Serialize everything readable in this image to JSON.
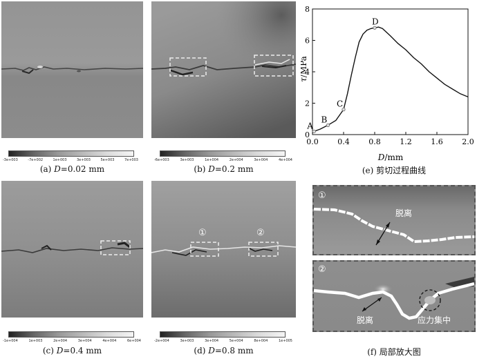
{
  "panels": {
    "a": {
      "caption_prefix": "(a) ",
      "caption_var": "D",
      "caption_rest": "=0.02 mm",
      "colorbar_ticks": [
        "-3e+003",
        "-7e+002",
        "1e+003",
        "3e+003",
        "5e+003",
        "7e+003"
      ]
    },
    "b": {
      "caption_prefix": "(b) ",
      "caption_var": "D",
      "caption_rest": "=0.2 mm",
      "colorbar_ticks": [
        "-6e+003",
        "3e+003",
        "1e+004",
        "2e+004",
        "3e+004",
        "4e+004"
      ]
    },
    "c": {
      "caption_prefix": "(c) ",
      "caption_var": "D",
      "caption_rest": "=0.4 mm",
      "colorbar_ticks": [
        "-1e+004",
        "1e+003",
        "2e+004",
        "3e+004",
        "4e+004",
        "6e+004"
      ]
    },
    "d": {
      "caption_prefix": "(d) ",
      "caption_var": "D",
      "caption_rest": "=0.8 mm",
      "colorbar_ticks": [
        "-2e+004",
        "3e+003",
        "3e+004",
        "5e+004",
        "8e+004",
        "1e+005"
      ],
      "markers": [
        "①",
        "②"
      ]
    },
    "e": {
      "caption": "(e)  剪切过程曲线"
    },
    "f": {
      "caption": "(f)  局部放大图",
      "zoom1": {
        "marker": "①",
        "label": "脱离"
      },
      "zoom2": {
        "marker": "②",
        "label_left": "脱离",
        "label_right": "应力集中"
      }
    }
  },
  "chart_data": {
    "type": "line",
    "title": "",
    "xlabel_var": "D",
    "xlabel_unit": "/mm",
    "ylabel_var": "τ",
    "ylabel_unit": "/MPa",
    "xlim": [
      0,
      2.0
    ],
    "ylim": [
      0,
      8
    ],
    "xticks": [
      "0.0",
      "0.4",
      "0.8",
      "1.2",
      "1.6",
      "2.0"
    ],
    "yticks": [
      "0",
      "2",
      "4",
      "6",
      "8"
    ],
    "xtick_values": [
      0,
      0.4,
      0.8,
      1.2,
      1.6,
      2.0
    ],
    "ytick_values": [
      0,
      2,
      4,
      6,
      8
    ],
    "x": [
      0,
      0.02,
      0.1,
      0.2,
      0.3,
      0.4,
      0.45,
      0.5,
      0.55,
      0.6,
      0.65,
      0.7,
      0.75,
      0.8,
      0.85,
      0.9,
      1.0,
      1.1,
      1.2,
      1.3,
      1.4,
      1.5,
      1.6,
      1.7,
      1.8,
      1.9,
      2.0
    ],
    "y": [
      0.1,
      0.2,
      0.35,
      0.6,
      0.9,
      1.6,
      2.6,
      3.8,
      4.9,
      5.9,
      6.4,
      6.65,
      6.75,
      6.8,
      6.85,
      6.75,
      6.3,
      5.8,
      5.4,
      4.9,
      4.5,
      4.0,
      3.6,
      3.2,
      2.9,
      2.6,
      2.4
    ],
    "points": [
      {
        "label": "A",
        "x": 0.02,
        "y": 0.2
      },
      {
        "label": "B",
        "x": 0.2,
        "y": 0.6
      },
      {
        "label": "C",
        "x": 0.4,
        "y": 1.6
      },
      {
        "label": "D",
        "x": 0.8,
        "y": 6.8
      }
    ]
  }
}
